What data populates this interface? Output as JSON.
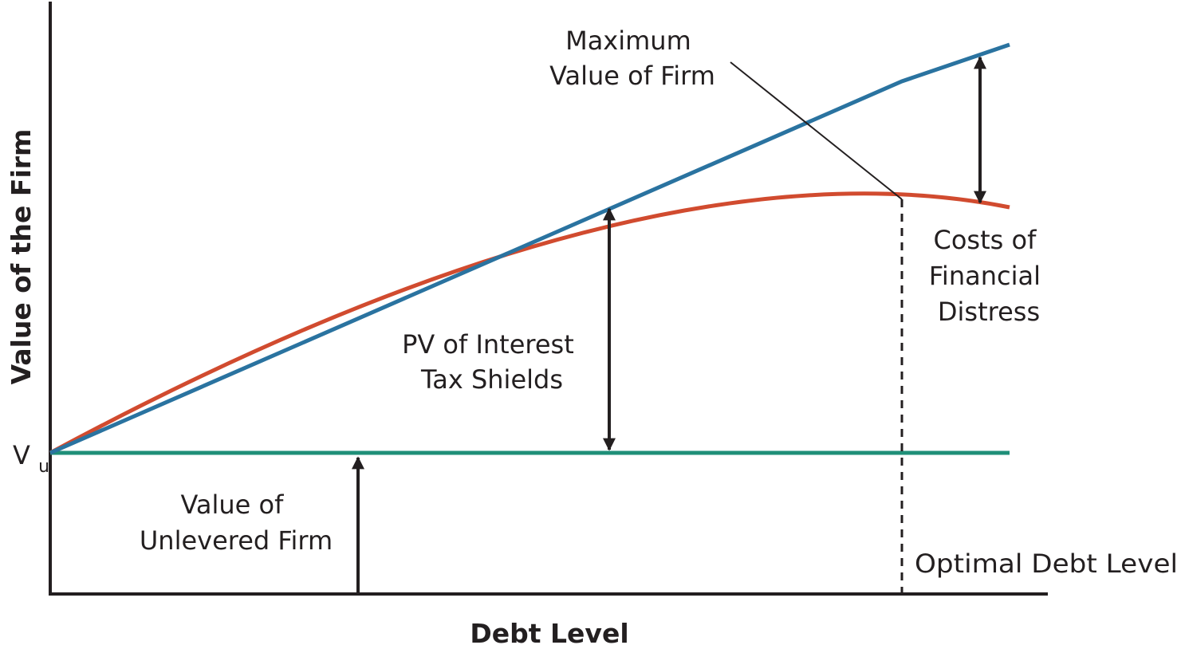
{
  "axes": {
    "x_title": "Debt Level",
    "y_title": "Value of the Firm"
  },
  "y_tick": {
    "base": "V",
    "subscript": "u"
  },
  "labels": {
    "maximum_value": [
      "Maximum",
      "Value of Firm"
    ],
    "costs_of_distress": [
      "Costs of",
      "Financial",
      "Distress"
    ],
    "pv_tax_shields": [
      "PV of Interest",
      "Tax Shields"
    ],
    "unlevered_firm": [
      "Value of",
      "Unlevered Firm"
    ],
    "optimal_debt": "Optimal Debt Level"
  },
  "colors": {
    "levered_no_distress": "#2a73a0",
    "levered_with_distress": "#d14b2f",
    "unlevered": "#1f8f78",
    "ink": "#231f20"
  }
}
